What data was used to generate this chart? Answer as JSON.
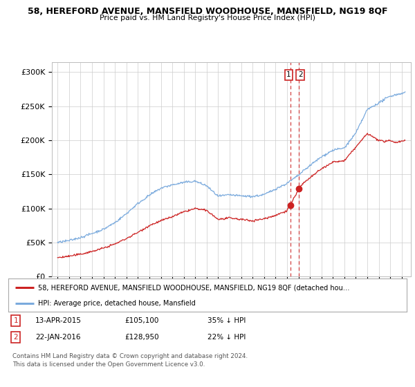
{
  "title": "58, HEREFORD AVENUE, MANSFIELD WOODHOUSE, MANSFIELD, NG19 8QF",
  "subtitle": "Price paid vs. HM Land Registry's House Price Index (HPI)",
  "ylabel_ticks": [
    "£0",
    "£50K",
    "£100K",
    "£150K",
    "£200K",
    "£250K",
    "£300K"
  ],
  "ytick_values": [
    0,
    50000,
    100000,
    150000,
    200000,
    250000,
    300000
  ],
  "ylim": [
    0,
    315000
  ],
  "xlim_start": 1994.5,
  "xlim_end": 2025.8,
  "hpi_color": "#7aaadd",
  "price_color": "#cc2222",
  "transaction1_date": 2015.28,
  "transaction1_price": 105100,
  "transaction2_date": 2016.05,
  "transaction2_price": 128950,
  "legend_label_red": "58, HEREFORD AVENUE, MANSFIELD WOODHOUSE, MANSFIELD, NG19 8QF (detached hou…",
  "legend_label_blue": "HPI: Average price, detached house, Mansfield",
  "table_row1": [
    "1",
    "13-APR-2015",
    "£105,100",
    "35% ↓ HPI"
  ],
  "table_row2": [
    "2",
    "22-JAN-2016",
    "£128,950",
    "22% ↓ HPI"
  ],
  "footnote": "Contains HM Land Registry data © Crown copyright and database right 2024.\nThis data is licensed under the Open Government Licence v3.0.",
  "background_color": "#ffffff",
  "grid_color": "#cccccc",
  "hpi_knots_x": [
    1995,
    1996,
    1997,
    1998,
    1999,
    2000,
    2001,
    2002,
    2003,
    2004,
    2005,
    2006,
    2007,
    2008,
    2009,
    2010,
    2011,
    2012,
    2013,
    2014,
    2015,
    2016,
    2017,
    2018,
    2019,
    2020,
    2021,
    2022,
    2023,
    2024,
    2025.3
  ],
  "hpi_knots_y": [
    50000,
    53000,
    58000,
    64000,
    70000,
    80000,
    93000,
    108000,
    120000,
    130000,
    135000,
    138000,
    140000,
    133000,
    118000,
    120000,
    118000,
    117000,
    120000,
    128000,
    136000,
    148000,
    162000,
    175000,
    185000,
    188000,
    210000,
    245000,
    255000,
    265000,
    270000
  ],
  "price_knots_x": [
    1995,
    1996,
    1997,
    1998,
    1999,
    2000,
    2001,
    2002,
    2003,
    2004,
    2005,
    2006,
    2007,
    2008,
    2009,
    2010,
    2011,
    2012,
    2013,
    2014,
    2015.0,
    2015.28,
    2015.5,
    2016.05,
    2016.3,
    2017,
    2018,
    2019,
    2020,
    2021,
    2022,
    2023.0,
    2023.5,
    2024.0,
    2024.5,
    2025.3
  ],
  "price_knots_y": [
    28000,
    30000,
    33000,
    37000,
    42000,
    48000,
    56000,
    65000,
    75000,
    82000,
    88000,
    95000,
    100000,
    97000,
    84000,
    86000,
    84000,
    82000,
    85000,
    90000,
    97000,
    105100,
    112000,
    128950,
    135000,
    145000,
    158000,
    168000,
    170000,
    190000,
    210000,
    200000,
    198000,
    200000,
    197000,
    200000
  ]
}
